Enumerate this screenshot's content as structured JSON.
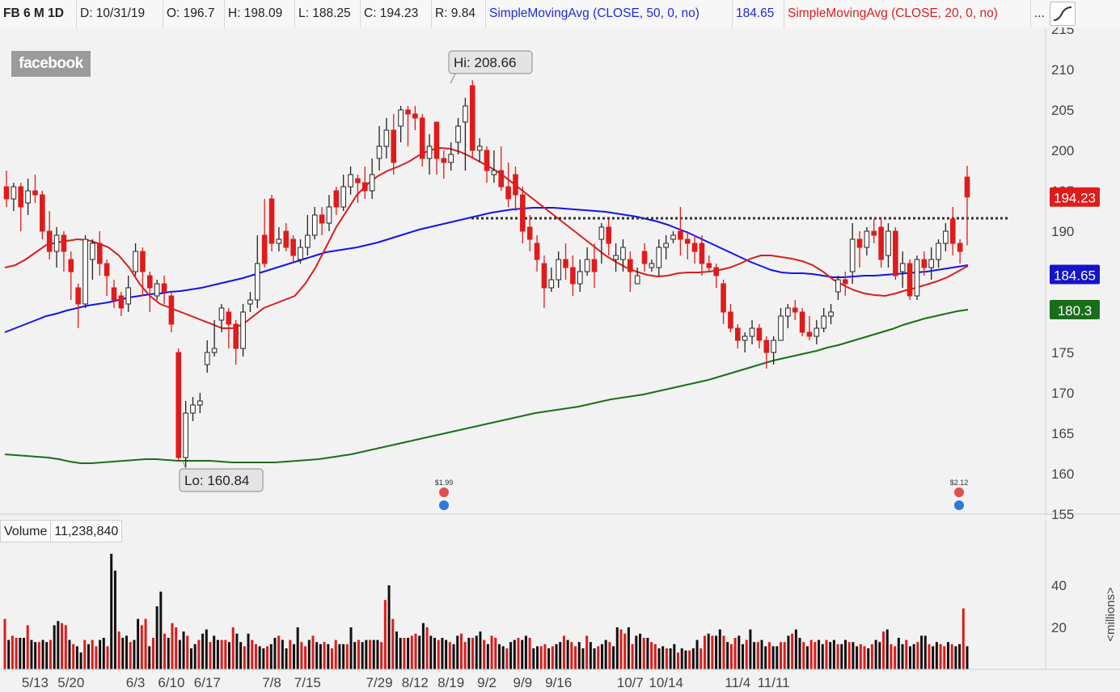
{
  "header": {
    "symbol": "FB 6 M 1D",
    "date": "D: 10/31/19",
    "open": "O: 196.7",
    "high": "H: 198.09",
    "low": "L: 188.25",
    "close": "C: 194.23",
    "range": "R: 9.84",
    "sma50_label": "SimpleMovingAvg (CLOSE, 50, 0, no)",
    "sma50_value": "184.65",
    "sma20_label": "SimpleMovingAvg (CLOSE, 20, 0, no)",
    "more": "..."
  },
  "logo_text": "facebook",
  "colors": {
    "up": "#ffffff",
    "down": "#e01b1b",
    "sma50": "#1414e6",
    "sma20": "#d91e1e",
    "sma200": "#1a6e1a",
    "resistance": "#333333",
    "bg": "#f2f2f2"
  },
  "chart_data": {
    "type": "candlestick",
    "price_axis": {
      "min": 155,
      "max": 215,
      "ticks": [
        155,
        160,
        165,
        170,
        175,
        180,
        185,
        190,
        195,
        200,
        205,
        210,
        215
      ]
    },
    "date_ticks": [
      {
        "label": "5/13",
        "index": 4
      },
      {
        "label": "5/20",
        "index": 9
      },
      {
        "label": "6/3",
        "index": 18
      },
      {
        "label": "6/10",
        "index": 23
      },
      {
        "label": "6/17",
        "index": 28
      },
      {
        "label": "7/8",
        "index": 37
      },
      {
        "label": "7/15",
        "index": 42
      },
      {
        "label": "7/29",
        "index": 52
      },
      {
        "label": "8/12",
        "index": 57
      },
      {
        "label": "8/19",
        "index": 62
      },
      {
        "label": "9/2",
        "index": 67
      },
      {
        "label": "9/9",
        "index": 72
      },
      {
        "label": "9/16",
        "index": 77
      },
      {
        "label": "10/7",
        "index": 87
      },
      {
        "label": "10/14",
        "index": 92
      },
      {
        "label": "11/4",
        "index": 102
      },
      {
        "label": "11/11",
        "index": 107
      }
    ],
    "price_labels": {
      "last": "194.23",
      "sma50": "184.65",
      "sma200": "180.3"
    },
    "annotations": {
      "high": "Hi: 208.66",
      "low": "Lo: 160.84",
      "dividend1": "$1.99",
      "dividend2": "$2.12"
    },
    "resistance": {
      "price": 191.6,
      "from_index": 48,
      "to_index": 103
    },
    "candles": [
      [
        195.5,
        194.0,
        197.5,
        193.0
      ],
      [
        194.0,
        195.5,
        196.0,
        192.5
      ],
      [
        195.5,
        193.0,
        196.0,
        190.0
      ],
      [
        193.5,
        195.0,
        196.5,
        192.0
      ],
      [
        195.0,
        194.5,
        197.0,
        193.5
      ],
      [
        194.5,
        190.0,
        195.0,
        189.0
      ],
      [
        190.0,
        187.5,
        192.5,
        186.5
      ],
      [
        187.5,
        189.5,
        190.5,
        185.5
      ],
      [
        189.5,
        187.5,
        190.0,
        185.0
      ],
      [
        186.5,
        185.0,
        187.5,
        181.5
      ],
      [
        183.0,
        181.0,
        183.5,
        178.0
      ],
      [
        181.0,
        189.0,
        189.5,
        180.5
      ],
      [
        186.5,
        188.5,
        189.0,
        184.0
      ],
      [
        188.5,
        186.0,
        190.0,
        184.5
      ],
      [
        186.0,
        184.5,
        186.5,
        182.0
      ],
      [
        183.0,
        181.5,
        184.0,
        180.5
      ],
      [
        182.0,
        180.5,
        182.5,
        179.5
      ],
      [
        181.0,
        183.0,
        184.5,
        180.0
      ],
      [
        185.0,
        187.5,
        188.5,
        184.5
      ],
      [
        187.5,
        185.0,
        188.0,
        182.0
      ],
      [
        184.5,
        183.0,
        185.0,
        180.0
      ],
      [
        182.0,
        183.5,
        184.0,
        181.5
      ],
      [
        183.5,
        182.5,
        184.5,
        181.0
      ],
      [
        182.0,
        178.5,
        182.5,
        177.5
      ],
      [
        175.0,
        162.0,
        175.5,
        161.5
      ],
      [
        162.0,
        167.5,
        169.0,
        160.8
      ],
      [
        167.5,
        168.5,
        169.5,
        166.5
      ],
      [
        168.5,
        169.0,
        170.0,
        167.5
      ],
      [
        173.5,
        175.0,
        176.5,
        172.5
      ],
      [
        175.0,
        175.5,
        179.0,
        174.5
      ],
      [
        179.0,
        180.5,
        181.0,
        177.5
      ],
      [
        180.0,
        178.5,
        180.5,
        175.5
      ],
      [
        178.5,
        175.5,
        179.0,
        173.5
      ],
      [
        175.5,
        180.0,
        181.0,
        174.5
      ],
      [
        181.0,
        181.5,
        182.5,
        180.0
      ],
      [
        181.5,
        186.0,
        189.5,
        180.5
      ],
      [
        189.5,
        186.0,
        194.0,
        185.5
      ],
      [
        194.0,
        188.5,
        194.5,
        187.5
      ],
      [
        188.5,
        189.0,
        190.5,
        187.5
      ],
      [
        190.0,
        188.0,
        191.0,
        187.5
      ],
      [
        189.0,
        187.0,
        189.5,
        186.0
      ],
      [
        186.5,
        188.0,
        189.0,
        186.0
      ],
      [
        188.0,
        189.5,
        192.0,
        187.0
      ],
      [
        189.5,
        192.0,
        193.0,
        189.0
      ],
      [
        192.0,
        191.0,
        193.0,
        189.5
      ],
      [
        191.0,
        193.0,
        194.5,
        190.0
      ],
      [
        195.0,
        193.0,
        195.5,
        192.0
      ],
      [
        193.0,
        195.5,
        197.0,
        192.5
      ],
      [
        195.5,
        197.0,
        198.0,
        194.5
      ],
      [
        196.5,
        196.0,
        197.0,
        193.5
      ],
      [
        196.0,
        195.0,
        198.0,
        194.0
      ],
      [
        195.0,
        197.0,
        199.0,
        194.0
      ],
      [
        199.0,
        200.5,
        203.0,
        197.5
      ],
      [
        200.5,
        202.5,
        204.0,
        199.0
      ],
      [
        202.5,
        198.5,
        204.5,
        197.0
      ],
      [
        203.0,
        205.0,
        205.5,
        201.0
      ],
      [
        205.0,
        204.5,
        205.5,
        200.5
      ],
      [
        204.5,
        204.0,
        205.5,
        202.5
      ],
      [
        204.0,
        199.0,
        204.5,
        198.0
      ],
      [
        199.0,
        200.5,
        202.0,
        197.0
      ],
      [
        203.5,
        199.0,
        203.5,
        197.0
      ],
      [
        199.0,
        198.5,
        200.0,
        196.5
      ],
      [
        198.5,
        199.5,
        201.0,
        197.5
      ],
      [
        201.0,
        203.0,
        204.0,
        199.5
      ],
      [
        203.5,
        205.5,
        206.5,
        197.5
      ],
      [
        208.0,
        200.0,
        208.66,
        199.0
      ],
      [
        200.0,
        200.5,
        201.5,
        198.5
      ],
      [
        200.0,
        197.5,
        200.5,
        196.0
      ],
      [
        197.0,
        197.5,
        200.0,
        196.0
      ],
      [
        197.5,
        195.5,
        200.5,
        195.0
      ],
      [
        195.5,
        194.0,
        198.5,
        193.0
      ],
      [
        197.0,
        194.5,
        198.0,
        192.5
      ],
      [
        194.5,
        190.0,
        195.5,
        188.5
      ],
      [
        190.5,
        189.0,
        192.0,
        187.5
      ],
      [
        188.5,
        186.5,
        189.5,
        185.0
      ],
      [
        186.0,
        183.0,
        187.0,
        180.5
      ],
      [
        183.0,
        184.0,
        185.5,
        182.5
      ],
      [
        184.0,
        186.5,
        187.5,
        183.0
      ],
      [
        186.5,
        185.5,
        188.5,
        184.0
      ],
      [
        185.5,
        183.5,
        187.0,
        182.0
      ],
      [
        183.5,
        185.0,
        186.5,
        182.5
      ],
      [
        185.0,
        186.5,
        188.0,
        184.5
      ],
      [
        186.5,
        185.0,
        188.5,
        183.0
      ],
      [
        189.0,
        190.5,
        191.0,
        186.0
      ],
      [
        190.5,
        188.5,
        191.5,
        187.0
      ],
      [
        186.5,
        187.0,
        188.5,
        185.0
      ],
      [
        186.5,
        188.0,
        189.0,
        185.0
      ],
      [
        186.5,
        185.0,
        187.5,
        182.5
      ],
      [
        183.5,
        184.5,
        185.5,
        183.5
      ],
      [
        187.5,
        186.0,
        188.5,
        185.0
      ],
      [
        185.5,
        186.0,
        186.5,
        185.0
      ],
      [
        185.5,
        188.0,
        189.0,
        184.5
      ],
      [
        188.0,
        188.5,
        189.5,
        186.5
      ],
      [
        189.0,
        189.5,
        190.0,
        188.5
      ],
      [
        190.0,
        189.0,
        193.0,
        187.0
      ],
      [
        189.0,
        188.5,
        190.0,
        186.5
      ],
      [
        188.5,
        187.5,
        189.5,
        186.0
      ],
      [
        188.5,
        186.0,
        189.5,
        184.5
      ],
      [
        186.0,
        185.5,
        187.0,
        185.0
      ],
      [
        185.5,
        184.5,
        186.0,
        183.0
      ],
      [
        183.5,
        180.0,
        184.0,
        178.5
      ],
      [
        180.0,
        178.0,
        181.0,
        177.5
      ],
      [
        178.0,
        176.5,
        178.5,
        175.5
      ],
      [
        176.5,
        177.0,
        177.5,
        175.0
      ],
      [
        177.0,
        178.0,
        179.0,
        176.0
      ],
      [
        178.0,
        176.5,
        178.5,
        175.5
      ],
      [
        176.5,
        175.0,
        177.0,
        173.0
      ],
      [
        175.0,
        176.5,
        177.0,
        173.5
      ],
      [
        176.5,
        179.5,
        180.5,
        176.5
      ],
      [
        179.5,
        180.5,
        181.0,
        178.0
      ],
      [
        180.5,
        180.0,
        181.5,
        179.0
      ],
      [
        180.0,
        177.5,
        180.5,
        177.0
      ],
      [
        177.5,
        177.0,
        179.5,
        176.5
      ],
      [
        177.0,
        178.0,
        179.0,
        176.0
      ],
      [
        178.0,
        179.5,
        180.5,
        177.5
      ],
      [
        179.5,
        180.0,
        181.0,
        178.5
      ],
      [
        182.5,
        184.0,
        184.5,
        181.5
      ],
      [
        184.0,
        183.5,
        185.0,
        182.0
      ],
      [
        185.0,
        189.0,
        191.0,
        183.5
      ],
      [
        189.0,
        188.0,
        190.0,
        185.5
      ],
      [
        188.0,
        190.0,
        190.5,
        187.0
      ],
      [
        190.0,
        189.5,
        191.5,
        188.5
      ],
      [
        190.5,
        186.5,
        191.5,
        185.5
      ],
      [
        187.0,
        190.0,
        191.0,
        185.5
      ],
      [
        190.0,
        184.5,
        190.5,
        184.0
      ],
      [
        185.0,
        186.0,
        187.5,
        183.0
      ],
      [
        186.0,
        182.0,
        186.5,
        181.5
      ],
      [
        182.0,
        186.5,
        187.0,
        181.5
      ],
      [
        186.5,
        185.5,
        187.5,
        184.5
      ],
      [
        185.5,
        186.5,
        188.0,
        184.0
      ],
      [
        186.5,
        188.5,
        189.0,
        185.5
      ],
      [
        188.5,
        190.0,
        191.0,
        187.5
      ],
      [
        191.5,
        188.5,
        193.0,
        187.0
      ],
      [
        188.5,
        187.5,
        189.0,
        186.0
      ],
      [
        196.7,
        194.23,
        198.09,
        188.25
      ]
    ],
    "sma20": [
      185.5,
      185.8,
      186.5,
      187.4,
      188.3,
      188.6,
      188.8,
      189.0,
      188.9,
      188.5,
      188.0,
      187.0,
      185.5,
      183.5,
      182.0,
      181.0,
      180.5,
      180.0,
      179.5,
      179.0,
      178.5,
      178.0,
      178.0,
      178.5,
      179.5,
      180.5,
      181.0,
      181.5,
      182.0,
      183.5,
      185.5,
      188.0,
      190.5,
      192.5,
      194.5,
      195.8,
      196.8,
      197.5,
      198.0,
      198.6,
      199.4,
      200.0,
      200.3,
      200.2,
      199.8,
      199.2,
      198.5,
      197.8,
      197.0,
      196.0,
      195.0,
      194.0,
      193.0,
      192.0,
      191.0,
      190.0,
      189.0,
      188.0,
      187.0,
      186.2,
      185.5,
      185.0,
      184.6,
      184.4,
      184.5,
      184.8,
      184.9,
      184.9,
      185.0,
      185.2,
      185.5,
      186.0,
      186.6,
      187.0,
      187.0,
      186.8,
      186.6,
      186.3,
      185.8,
      185.0,
      184.0,
      183.3,
      182.7,
      182.3,
      182.1,
      182.0,
      182.3,
      182.7,
      183.0,
      183.4,
      183.8,
      184.3,
      185.0,
      185.7
    ],
    "sma50": [
      177.5,
      178.0,
      178.5,
      179.0,
      179.5,
      179.8,
      180.2,
      180.5,
      180.8,
      181.0,
      181.2,
      181.5,
      181.8,
      182.0,
      182.2,
      182.3,
      182.5,
      182.6,
      182.8,
      183.0,
      183.3,
      183.6,
      183.9,
      184.2,
      184.6,
      185.0,
      185.4,
      185.8,
      186.2,
      186.6,
      187.0,
      187.4,
      187.6,
      187.8,
      188.0,
      188.3,
      188.6,
      189.0,
      189.4,
      189.8,
      190.2,
      190.5,
      190.8,
      191.1,
      191.4,
      191.7,
      192.0,
      192.3,
      192.5,
      192.7,
      192.8,
      192.9,
      192.9,
      192.9,
      192.8,
      192.7,
      192.6,
      192.5,
      192.4,
      192.2,
      192.0,
      191.8,
      191.5,
      191.2,
      190.8,
      190.3,
      189.8,
      189.2,
      188.6,
      188.0,
      187.4,
      186.8,
      186.2,
      185.7,
      185.2,
      184.9,
      184.8,
      184.8,
      184.7,
      184.5,
      184.3,
      184.3,
      184.4,
      184.5,
      184.5,
      184.6,
      184.7,
      184.8,
      184.9,
      185.0,
      185.2,
      185.4,
      185.6,
      185.8
    ],
    "sma200": [
      162.4,
      162.3,
      162.2,
      162.1,
      162.0,
      161.8,
      161.5,
      161.3,
      161.3,
      161.4,
      161.5,
      161.6,
      161.7,
      161.8,
      161.8,
      161.7,
      161.6,
      161.6,
      161.6,
      161.6,
      161.5,
      161.4,
      161.4,
      161.4,
      161.4,
      161.4,
      161.5,
      161.6,
      161.7,
      161.8,
      162.0,
      162.2,
      162.4,
      162.7,
      163.0,
      163.3,
      163.6,
      163.9,
      164.2,
      164.5,
      164.8,
      165.1,
      165.4,
      165.7,
      166.0,
      166.3,
      166.6,
      166.9,
      167.2,
      167.5,
      167.7,
      167.9,
      168.1,
      168.3,
      168.6,
      168.9,
      169.2,
      169.4,
      169.6,
      169.8,
      170.1,
      170.4,
      170.7,
      171.0,
      171.3,
      171.6,
      172.0,
      172.4,
      172.8,
      173.2,
      173.6,
      174.0,
      174.3,
      174.6,
      174.9,
      175.2,
      175.6,
      175.9,
      176.3,
      176.7,
      177.1,
      177.5,
      177.9,
      178.4,
      178.8,
      179.2,
      179.5,
      179.8,
      180.1,
      180.3
    ],
    "volume": {
      "label": "Volume",
      "value": "11,238,840",
      "axis_label": "<millions>",
      "ticks": [
        20,
        40
      ],
      "max": 60,
      "bars": [
        24,
        14,
        16,
        15,
        15,
        15,
        21,
        14,
        13,
        13,
        14,
        13,
        14,
        21,
        23,
        22,
        21,
        14,
        12,
        11,
        8,
        14,
        12,
        14,
        11,
        14,
        15,
        11,
        55,
        47,
        18,
        15,
        16,
        13,
        14,
        24,
        21,
        24,
        11,
        15,
        30,
        37,
        17,
        15,
        22,
        20,
        14,
        18,
        16,
        10,
        12,
        14,
        17,
        19,
        13,
        16,
        14,
        14,
        14,
        13,
        20,
        17,
        13,
        11,
        17,
        14,
        12,
        11,
        10,
        11,
        12,
        15,
        16,
        14,
        10,
        14,
        12,
        20,
        13,
        11,
        14,
        16,
        13,
        12,
        13,
        12,
        10,
        14,
        12,
        12,
        12,
        20,
        13,
        14,
        13,
        14,
        14,
        14,
        14,
        13,
        33,
        40,
        24,
        18,
        15,
        15,
        15,
        16,
        17,
        16,
        22,
        20,
        16,
        15,
        14,
        15,
        14,
        13,
        12,
        16,
        17,
        13,
        15,
        15,
        16,
        18,
        14,
        12,
        16,
        15,
        12,
        11,
        10,
        13,
        14,
        15,
        14,
        16,
        15,
        10,
        11,
        11,
        12,
        10,
        11,
        12,
        13,
        16,
        14,
        13,
        11,
        13,
        10,
        16,
        13,
        10,
        11,
        12,
        14,
        13,
        11,
        20,
        19,
        17,
        20,
        12,
        16,
        17,
        15,
        15,
        13,
        12,
        10,
        11,
        10,
        10,
        12,
        8,
        10,
        9,
        9,
        10,
        14,
        10,
        16,
        17,
        16,
        16,
        19,
        16,
        13,
        12,
        15,
        16,
        12,
        14,
        19,
        13,
        13,
        14,
        11,
        13,
        11,
        11,
        13,
        13,
        16,
        17,
        19,
        15,
        13,
        11,
        14,
        13,
        14,
        12,
        14,
        13,
        14,
        12,
        12,
        14,
        13,
        13,
        11,
        12,
        11,
        10,
        12,
        14,
        13,
        18,
        19,
        12,
        11,
        15,
        12,
        14,
        11,
        12,
        13,
        16,
        16,
        12,
        11,
        13,
        12,
        11,
        13,
        12,
        11,
        12,
        29,
        11
      ]
    }
  }
}
